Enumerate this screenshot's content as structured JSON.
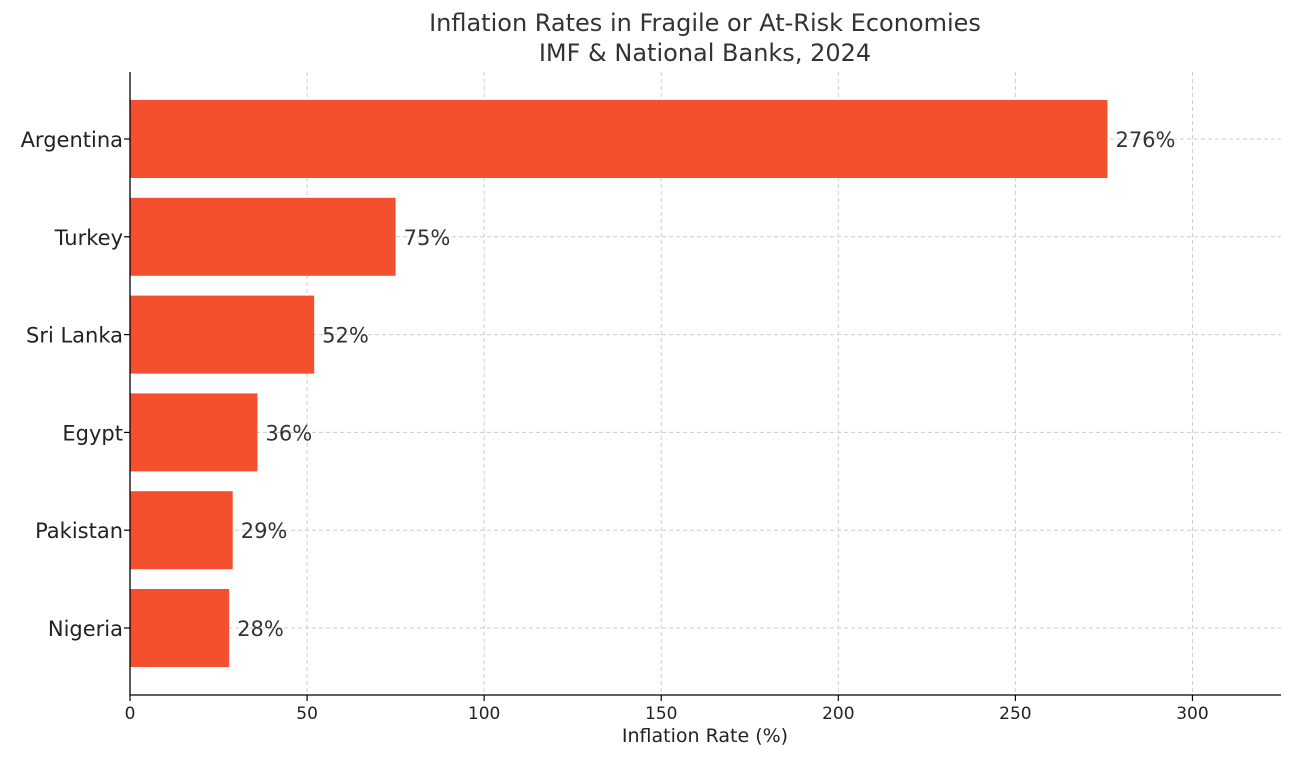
{
  "chart_data": {
    "type": "bar",
    "orientation": "horizontal",
    "title": "Inflation Rates in Fragile or At-Risk Economies",
    "subtitle": "IMF & National Banks, 2024",
    "xlabel": "Inflation Rate (%)",
    "ylabel": "",
    "categories": [
      "Argentina",
      "Turkey",
      "Sri Lanka",
      "Egypt",
      "Pakistan",
      "Nigeria"
    ],
    "values": [
      276,
      75,
      52,
      36,
      29,
      28
    ],
    "value_labels": [
      "276%",
      "75%",
      "52%",
      "36%",
      "29%",
      "28%"
    ],
    "xlim": [
      0,
      325
    ],
    "xticks": [
      0,
      50,
      100,
      150,
      200,
      250,
      300
    ],
    "grid": true,
    "bar_color": "#f4502f"
  }
}
